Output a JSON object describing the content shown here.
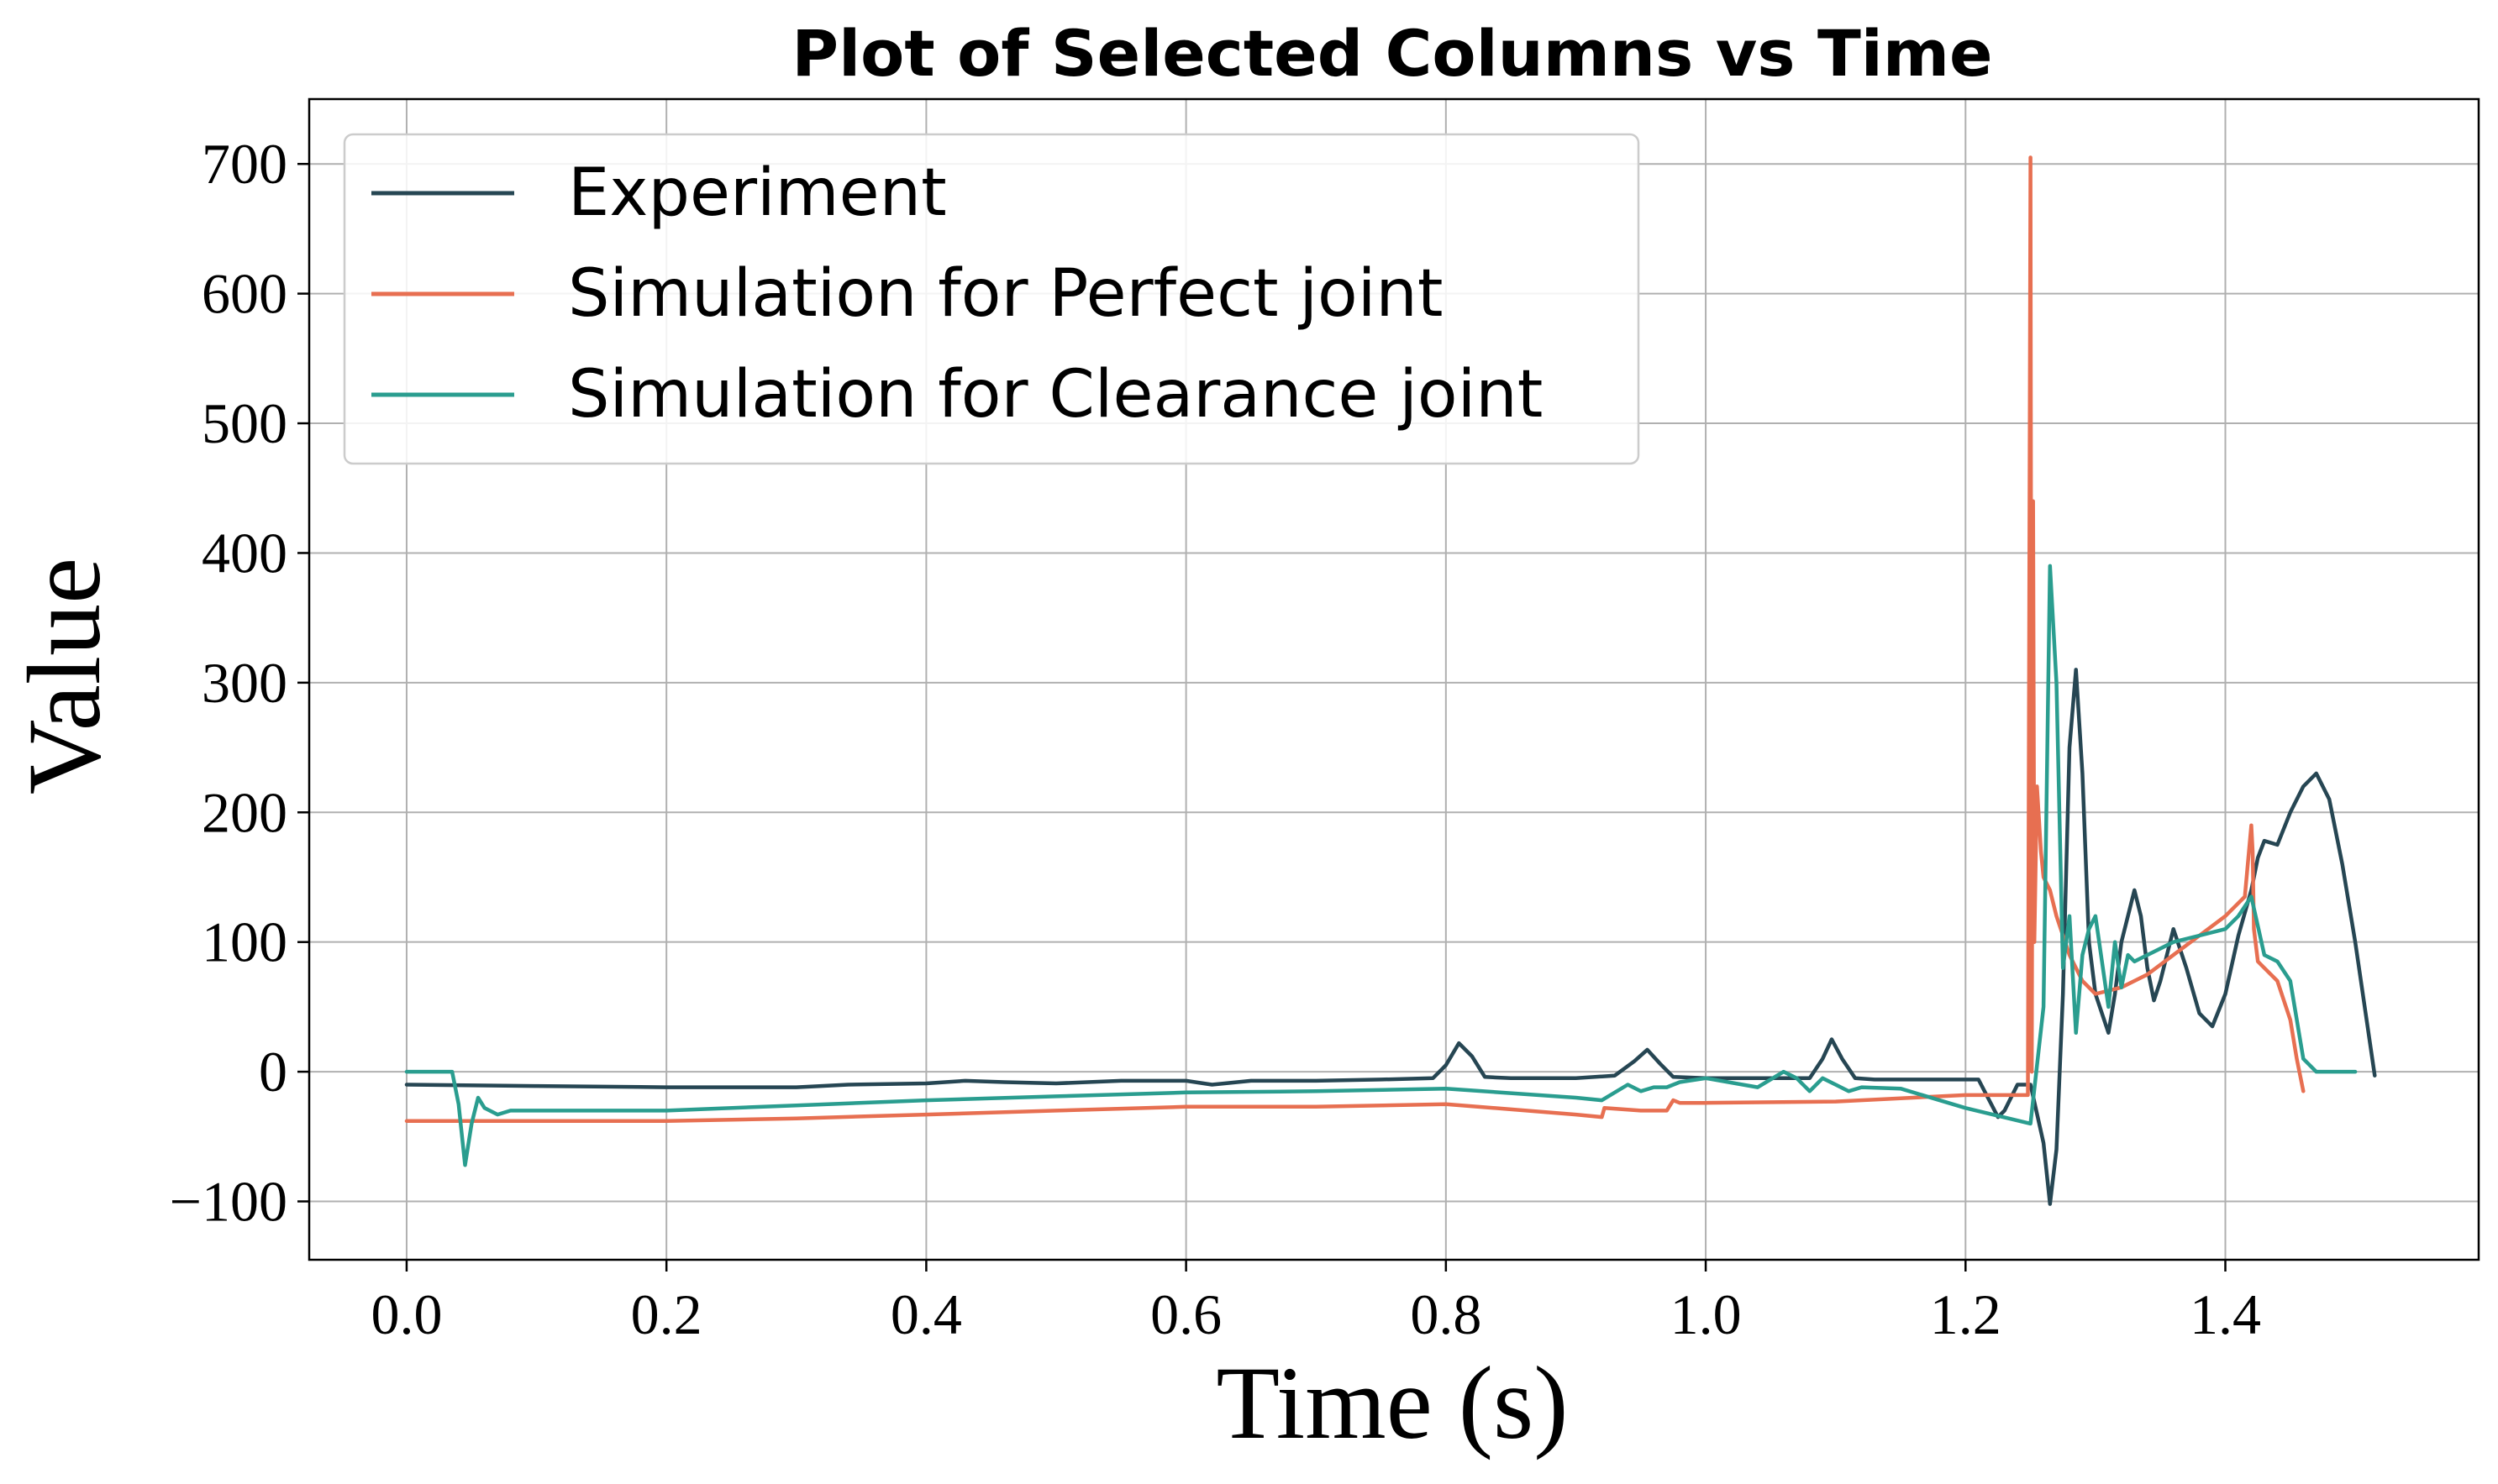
{
  "chart_data": {
    "type": "line",
    "title": "Plot of Selected Columns vs Time",
    "xlabel": "Time (s)",
    "ylabel": "Value",
    "xlim": [
      -0.075,
      1.595
    ],
    "ylim": [
      -145,
      750
    ],
    "xticks": [
      0.0,
      0.2,
      0.4,
      0.6,
      0.8,
      1.0,
      1.2,
      1.4
    ],
    "xtick_labels": [
      "0.0",
      "0.2",
      "0.4",
      "0.6",
      "0.8",
      "1.0",
      "1.2",
      "1.4"
    ],
    "yticks": [
      -100,
      0,
      100,
      200,
      300,
      400,
      500,
      600,
      700
    ],
    "ytick_labels": [
      "−100",
      "0",
      "100",
      "200",
      "300",
      "400",
      "500",
      "600",
      "700"
    ],
    "grid": true,
    "legend_position": "top-left",
    "series": [
      {
        "name": "Experiment",
        "color": "#264653",
        "x": [
          0.0,
          0.1,
          0.2,
          0.3,
          0.34,
          0.4,
          0.43,
          0.46,
          0.5,
          0.55,
          0.6,
          0.62,
          0.65,
          0.7,
          0.75,
          0.79,
          0.8,
          0.81,
          0.82,
          0.83,
          0.85,
          0.9,
          0.93,
          0.945,
          0.955,
          0.965,
          0.975,
          1.0,
          1.05,
          1.08,
          1.09,
          1.097,
          1.105,
          1.115,
          1.13,
          1.15,
          1.2,
          1.21,
          1.225,
          1.23,
          1.24,
          1.25,
          1.26,
          1.265,
          1.27,
          1.275,
          1.28,
          1.285,
          1.29,
          1.295,
          1.3,
          1.31,
          1.315,
          1.32,
          1.33,
          1.335,
          1.34,
          1.345,
          1.35,
          1.36,
          1.37,
          1.38,
          1.39,
          1.4,
          1.41,
          1.42,
          1.425,
          1.43,
          1.44,
          1.45,
          1.46,
          1.47,
          1.48,
          1.49,
          1.5,
          1.515
        ],
        "y": [
          -10,
          -11,
          -12,
          -12,
          -10,
          -9,
          -7,
          -8,
          -9,
          -7,
          -7,
          -10,
          -7,
          -7,
          -6,
          -5,
          5,
          22,
          12,
          -4,
          -5,
          -5,
          -3,
          8,
          17,
          6,
          -4,
          -5,
          -5,
          -5,
          10,
          25,
          10,
          -5,
          -6,
          -6,
          -6,
          -6,
          -35,
          -30,
          -10,
          -10,
          -55,
          -102,
          -60,
          60,
          250,
          310,
          230,
          100,
          60,
          30,
          60,
          100,
          140,
          120,
          80,
          55,
          70,
          110,
          80,
          45,
          35,
          60,
          105,
          140,
          165,
          178,
          175,
          200,
          220,
          230,
          210,
          160,
          100,
          -3
        ]
      },
      {
        "name": "Simulation for Perfect joint",
        "color": "#e76f51",
        "x": [
          0.0,
          0.1,
          0.2,
          0.3,
          0.4,
          0.5,
          0.6,
          0.7,
          0.8,
          0.9,
          0.92,
          0.922,
          0.95,
          0.97,
          0.975,
          0.98,
          1.0,
          1.1,
          1.2,
          1.248,
          1.25,
          1.251,
          1.252,
          1.253,
          1.255,
          1.258,
          1.26,
          1.265,
          1.27,
          1.28,
          1.29,
          1.3,
          1.32,
          1.34,
          1.36,
          1.38,
          1.4,
          1.415,
          1.42,
          1.421,
          1.422,
          1.425,
          1.43,
          1.44,
          1.45,
          1.455,
          1.46
        ],
        "y": [
          -38,
          -38,
          -38,
          -36,
          -33,
          -30,
          -27,
          -27,
          -25,
          -33,
          -35,
          -28,
          -30,
          -30,
          -22,
          -24,
          -24,
          -23,
          -18,
          -18,
          705,
          0,
          440,
          100,
          220,
          170,
          150,
          140,
          120,
          90,
          70,
          60,
          65,
          75,
          90,
          105,
          120,
          135,
          190,
          170,
          110,
          85,
          80,
          70,
          40,
          10,
          -15
        ]
      },
      {
        "name": "Simulation for Clearance joint",
        "color": "#2a9d8f",
        "x": [
          0.0,
          0.035,
          0.04,
          0.045,
          0.05,
          0.055,
          0.06,
          0.07,
          0.08,
          0.1,
          0.2,
          0.3,
          0.4,
          0.5,
          0.6,
          0.7,
          0.8,
          0.9,
          0.92,
          0.94,
          0.95,
          0.96,
          0.97,
          0.98,
          1.0,
          1.04,
          1.06,
          1.07,
          1.08,
          1.09,
          1.1,
          1.11,
          1.12,
          1.15,
          1.2,
          1.25,
          1.26,
          1.265,
          1.27,
          1.275,
          1.28,
          1.285,
          1.29,
          1.295,
          1.3,
          1.31,
          1.315,
          1.32,
          1.325,
          1.33,
          1.34,
          1.36,
          1.38,
          1.4,
          1.41,
          1.42,
          1.43,
          1.44,
          1.45,
          1.46,
          1.47,
          1.5
        ],
        "y": [
          0,
          0,
          -25,
          -72,
          -40,
          -20,
          -28,
          -33,
          -30,
          -30,
          -30,
          -26,
          -22,
          -19,
          -16,
          -15,
          -13,
          -20,
          -22,
          -10,
          -15,
          -12,
          -12,
          -8,
          -5,
          -12,
          0,
          -5,
          -15,
          -5,
          -10,
          -15,
          -12,
          -13,
          -28,
          -40,
          50,
          390,
          300,
          80,
          120,
          30,
          90,
          110,
          120,
          50,
          100,
          65,
          90,
          85,
          90,
          100,
          105,
          110,
          120,
          135,
          90,
          85,
          70,
          10,
          0,
          0
        ]
      }
    ]
  }
}
